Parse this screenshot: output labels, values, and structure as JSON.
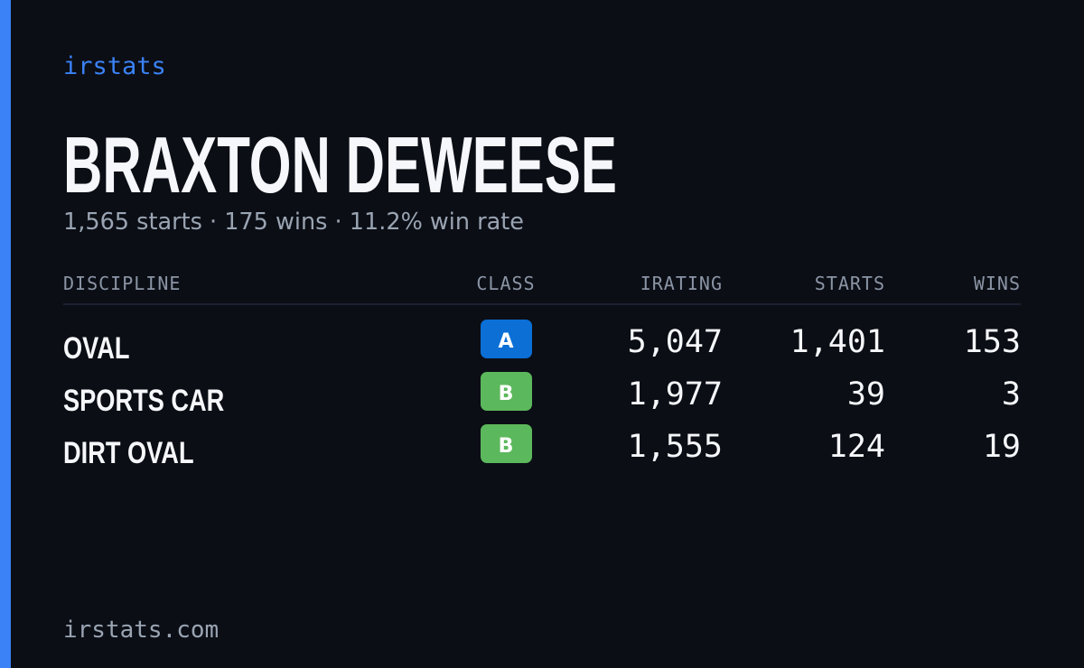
{
  "brand": "irstats",
  "driver": {
    "name": "BRAXTON DEWEESE",
    "summary": "1,565 starts · 175 wins · 11.2% win rate"
  },
  "table": {
    "columns": [
      "DISCIPLINE",
      "CLASS",
      "IRATING",
      "STARTS",
      "WINS"
    ],
    "rows": [
      [
        "OVAL",
        "A",
        "5,047",
        "1,401",
        "153"
      ],
      [
        "SPORTS CAR",
        "B",
        "1,977",
        "39",
        "3"
      ],
      [
        "DIRT OVAL",
        "B",
        "1,555",
        "124",
        "19"
      ]
    ],
    "badge_colors": [
      "#0b6fd6",
      "#5cb85c",
      "#5cb85c"
    ]
  },
  "footer": "irstats.com"
}
